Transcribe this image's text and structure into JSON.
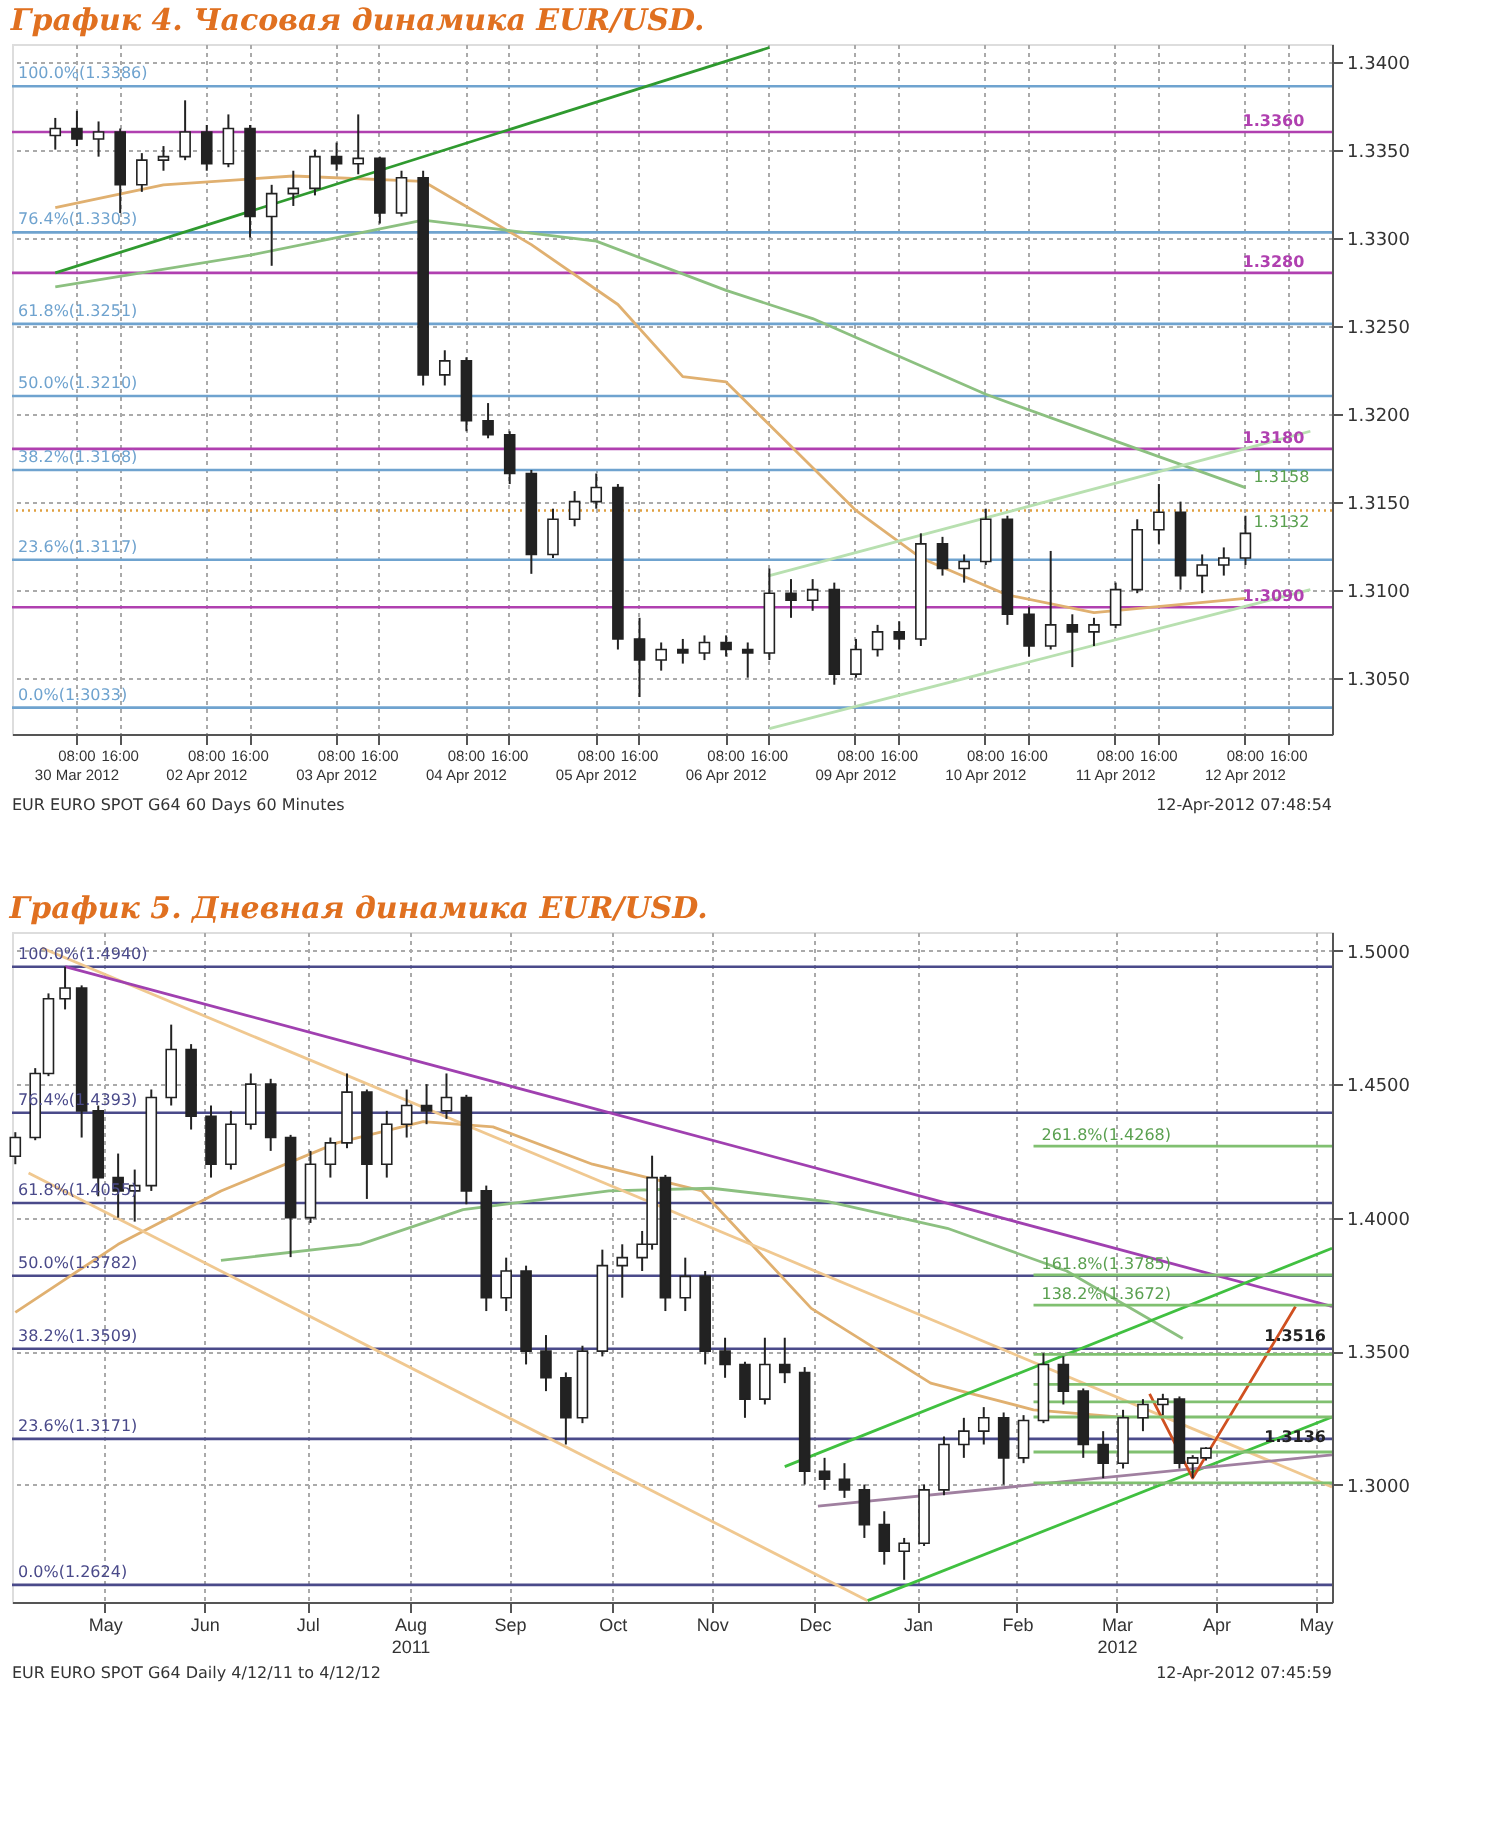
{
  "chart_data": [
    {
      "type": "candlestick",
      "title": "График 4.   Часовая динамика EUR/USD.",
      "grid": true,
      "ylim": [
        1.3018,
        1.341
      ],
      "yticks": [
        {
          "value": 1.305,
          "label": "1.3050"
        },
        {
          "value": 1.31,
          "label": "1.3100"
        },
        {
          "value": 1.315,
          "label": "1.3150"
        },
        {
          "value": 1.32,
          "label": "1.3200"
        },
        {
          "value": 1.325,
          "label": "1.3250"
        },
        {
          "value": 1.33,
          "label": "1.3300"
        },
        {
          "value": 1.335,
          "label": "1.3350"
        },
        {
          "value": 1.34,
          "label": "1.3400"
        }
      ],
      "categories": [
        null,
        null,
        "08:00\n30 Mar 2012",
        null,
        "16:00",
        null,
        null,
        null,
        "08:00\n02 Apr 2012",
        null,
        "16:00",
        null,
        null,
        null,
        "08:00\n03 Apr 2012",
        null,
        "16:00",
        null,
        null,
        null,
        "08:00\n04 Apr 2012",
        null,
        "16:00",
        null,
        null,
        null,
        "08:00\n05 Apr 2012",
        null,
        "16:00",
        null,
        null,
        null,
        "08:00\n06 Apr 2012",
        null,
        "16:00",
        null,
        null,
        null,
        "08:00\n09 Apr 2012",
        null,
        "16:00",
        null,
        null,
        null,
        "08:00\n10 Apr 2012",
        null,
        "16:00",
        null,
        null,
        null,
        "08:00\n11 Apr 2012",
        null,
        "16:00",
        null,
        null,
        null,
        "08:00\n12 Apr 2012",
        null,
        "16:00",
        null
      ],
      "ohlc": [
        null,
        [
          1.3358,
          1.3368,
          1.335,
          1.3362
        ],
        [
          1.3362,
          1.3372,
          1.3352,
          1.3356
        ],
        [
          1.3356,
          1.3366,
          1.3346,
          1.336
        ],
        [
          1.336,
          1.3362,
          1.3314,
          1.333
        ],
        [
          1.333,
          1.3348,
          1.3326,
          1.3344
        ],
        [
          1.3344,
          1.3352,
          1.3338,
          1.3346
        ],
        [
          1.3346,
          1.3378,
          1.3344,
          1.336
        ],
        [
          1.336,
          1.3364,
          1.3338,
          1.3342
        ],
        [
          1.3342,
          1.337,
          1.334,
          1.3362
        ],
        [
          1.3362,
          1.3364,
          1.33,
          1.3312
        ],
        [
          1.3312,
          1.333,
          1.3284,
          1.3325
        ],
        [
          1.3325,
          1.3338,
          1.3318,
          1.3328
        ],
        [
          1.3328,
          1.335,
          1.3324,
          1.3346
        ],
        [
          1.3346,
          1.3354,
          1.3338,
          1.3342
        ],
        [
          1.3342,
          1.337,
          1.3336,
          1.3345
        ],
        [
          1.3345,
          1.3346,
          1.3308,
          1.3314
        ],
        [
          1.3314,
          1.3338,
          1.3312,
          1.3334
        ],
        [
          1.3334,
          1.3338,
          1.3216,
          1.3222
        ],
        [
          1.3222,
          1.3236,
          1.3216,
          1.323
        ],
        [
          1.323,
          1.3232,
          1.319,
          1.3196
        ],
        [
          1.3196,
          1.3206,
          1.3186,
          1.3188
        ],
        [
          1.3188,
          1.319,
          1.316,
          1.3166
        ],
        [
          1.3166,
          1.3168,
          1.3109,
          1.312
        ],
        [
          1.312,
          1.3146,
          1.3118,
          1.314
        ],
        [
          1.314,
          1.3156,
          1.3136,
          1.315
        ],
        [
          1.315,
          1.3166,
          1.3146,
          1.3158
        ],
        [
          1.3158,
          1.316,
          1.3066,
          1.3072
        ],
        [
          1.3072,
          1.3084,
          1.3039,
          1.306
        ],
        [
          1.306,
          1.307,
          1.3054,
          1.3066
        ],
        [
          1.3066,
          1.3072,
          1.3058,
          1.3064
        ],
        [
          1.3064,
          1.3074,
          1.306,
          1.307
        ],
        [
          1.307,
          1.3074,
          1.3062,
          1.3066
        ],
        [
          1.3066,
          1.307,
          1.305,
          1.3064
        ],
        [
          1.3064,
          1.3112,
          1.306,
          1.3098
        ],
        [
          1.3098,
          1.3106,
          1.3084,
          1.3094
        ],
        [
          1.3094,
          1.3106,
          1.3088,
          1.31
        ],
        [
          1.31,
          1.3104,
          1.3046,
          1.3052
        ],
        [
          1.3052,
          1.3072,
          1.305,
          1.3066
        ],
        [
          1.3066,
          1.308,
          1.3062,
          1.3076
        ],
        [
          1.3076,
          1.3082,
          1.3066,
          1.3072
        ],
        [
          1.3072,
          1.3132,
          1.3068,
          1.3126
        ],
        [
          1.3126,
          1.313,
          1.3108,
          1.3112
        ],
        [
          1.3112,
          1.312,
          1.3104,
          1.3116
        ],
        [
          1.3116,
          1.3146,
          1.3114,
          1.314
        ],
        [
          1.314,
          1.3142,
          1.308,
          1.3086
        ],
        [
          1.3086,
          1.309,
          1.3062,
          1.3068
        ],
        [
          1.3068,
          1.3122,
          1.3066,
          1.308
        ],
        [
          1.308,
          1.3086,
          1.3056,
          1.3076
        ],
        [
          1.3076,
          1.3084,
          1.3068,
          1.308
        ],
        [
          1.308,
          1.3104,
          1.3078,
          1.31
        ],
        [
          1.31,
          1.314,
          1.3098,
          1.3134
        ],
        [
          1.3134,
          1.316,
          1.3126,
          1.3144
        ],
        [
          1.3144,
          1.315,
          1.31,
          1.3108
        ],
        [
          1.3108,
          1.312,
          1.3098,
          1.3114
        ],
        [
          1.3114,
          1.3124,
          1.3108,
          1.3118
        ],
        [
          1.3118,
          1.3142,
          1.3114,
          1.3132
        ],
        null,
        null,
        null
      ],
      "series": [
        {
          "type": "line",
          "color": "#e0b070",
          "values": [
            null,
            1.3317,
            null,
            null,
            null,
            null,
            1.333,
            null,
            null,
            null,
            null,
            null,
            1.3335,
            null,
            null,
            null,
            null,
            null,
            1.3332,
            null,
            null,
            null,
            null,
            1.3296,
            null,
            null,
            null,
            1.3262,
            null,
            null,
            1.3221,
            null,
            1.3218,
            null,
            null,
            null,
            null,
            null,
            1.3145,
            null,
            null,
            1.3118,
            null,
            null,
            null,
            1.3097,
            null,
            null,
            null,
            1.3087,
            null,
            null,
            null,
            null,
            null,
            null,
            1.3095,
            null,
            null,
            null
          ]
        },
        {
          "type": "line",
          "color": "#8cc080",
          "values": [
            null,
            1.3272,
            null,
            null,
            null,
            null,
            null,
            null,
            null,
            null,
            1.329,
            null,
            null,
            null,
            null,
            null,
            null,
            null,
            1.331,
            null,
            null,
            null,
            null,
            null,
            null,
            null,
            1.3298,
            null,
            null,
            null,
            null,
            null,
            1.327,
            null,
            null,
            null,
            1.3254,
            null,
            null,
            null,
            null,
            null,
            null,
            null,
            1.3211,
            null,
            null,
            null,
            null,
            null,
            null,
            1.318,
            null,
            null,
            null,
            null,
            1.3158,
            null,
            null,
            null
          ]
        },
        {
          "type": "line",
          "color": "#2f9a2f",
          "values": [
            null,
            1.328,
            null,
            null,
            null,
            null,
            null,
            null,
            null,
            null,
            null,
            null,
            null,
            null,
            null,
            null,
            null,
            null,
            null,
            null,
            null,
            null,
            null,
            null,
            null,
            null,
            null,
            null,
            null,
            null,
            null,
            null,
            null,
            null,
            1.3408,
            null,
            null,
            null,
            null,
            null,
            null,
            null,
            null,
            null,
            null,
            null,
            null,
            null,
            null,
            null,
            null,
            null,
            null,
            null,
            null,
            null,
            null,
            null,
            null,
            null
          ]
        },
        {
          "type": "line",
          "color": "#b8e0b0",
          "values": [
            null,
            null,
            null,
            null,
            null,
            null,
            null,
            null,
            null,
            null,
            null,
            null,
            null,
            null,
            null,
            null,
            null,
            null,
            null,
            null,
            null,
            null,
            null,
            null,
            null,
            null,
            null,
            null,
            null,
            null,
            null,
            null,
            null,
            null,
            1.3021,
            null,
            null,
            null,
            null,
            null,
            null,
            null,
            null,
            null,
            null,
            null,
            null,
            null,
            null,
            null,
            null,
            null,
            null,
            null,
            null,
            null,
            null,
            null,
            null,
            1.31
          ]
        },
        {
          "type": "line",
          "color": "#b8e0b0",
          "values": [
            null,
            null,
            null,
            null,
            null,
            null,
            null,
            null,
            null,
            null,
            null,
            null,
            null,
            null,
            null,
            null,
            null,
            null,
            null,
            null,
            null,
            null,
            null,
            null,
            null,
            null,
            null,
            null,
            null,
            null,
            null,
            null,
            null,
            null,
            1.3108,
            null,
            null,
            null,
            null,
            null,
            null,
            null,
            null,
            null,
            null,
            null,
            null,
            null,
            null,
            null,
            null,
            null,
            null,
            null,
            null,
            null,
            null,
            null,
            null,
            1.319
          ]
        }
      ],
      "ref_lines": [
        {
          "axis": "y",
          "value": 1.3386,
          "label": "100.0%(1.3386)",
          "color": "#6fa3cf"
        },
        {
          "axis": "y",
          "value": 1.3303,
          "label": "76.4%(1.3303)",
          "color": "#6fa3cf"
        },
        {
          "axis": "y",
          "value": 1.3251,
          "label": "61.8%(1.3251)",
          "color": "#6fa3cf"
        },
        {
          "axis": "y",
          "value": 1.321,
          "label": "50.0%(1.3210)",
          "color": "#6fa3cf"
        },
        {
          "axis": "y",
          "value": 1.3168,
          "label": "38.2%(1.3168)",
          "color": "#6fa3cf"
        },
        {
          "axis": "y",
          "value": 1.3117,
          "label": "23.6%(1.3117)",
          "color": "#6fa3cf"
        },
        {
          "axis": "y",
          "value": 1.3033,
          "label": "0.0%(1.3033)",
          "color": "#6fa3cf"
        },
        {
          "axis": "y",
          "value": 1.336,
          "color": "#b040b0"
        },
        {
          "axis": "y",
          "value": 1.328,
          "color": "#b040b0"
        },
        {
          "axis": "y",
          "value": 1.318,
          "color": "#b040b0"
        },
        {
          "axis": "y",
          "value": 1.309,
          "color": "#b040b0"
        },
        {
          "axis": "y",
          "value": 1.3145,
          "color": "#e0a040",
          "line_style": "dotted"
        }
      ],
      "annotations": [
        "EUR  EURO SPOT     G64    60 Days  60 Minutes",
        "12-Apr-2012 07:48:54",
        {
          "text": "1.3360",
          "y": 1.336
        },
        {
          "text": "1.3280",
          "y": 1.328
        },
        {
          "text": "1.3180",
          "y": 1.318
        },
        {
          "text": "1.3158",
          "x": "08:00\n12 Apr 2012",
          "y": 1.3158
        },
        {
          "text": "1.3132",
          "x": "08:00\n12 Apr 2012",
          "y": 1.3132
        },
        {
          "text": "1.3090",
          "y": 1.309
        }
      ]
    },
    {
      "type": "candlestick",
      "title": "График 5.   Дневная динамика EUR/USD.",
      "grid": true,
      "xlim": [
        "2011-04-18",
        "2012-05-20"
      ],
      "ylim": [
        1.256,
        1.507
      ],
      "xticks": [
        {
          "value": "2011-05-16",
          "label": "May"
        },
        {
          "value": "2011-06-15",
          "label": "Jun"
        },
        {
          "value": "2011-07-16",
          "label": "Jul"
        },
        {
          "value": "2011-08-16",
          "label": "Aug\n2011"
        },
        {
          "value": "2011-09-15",
          "label": "Sep"
        },
        {
          "value": "2011-10-16",
          "label": "Oct"
        },
        {
          "value": "2011-11-15",
          "label": "Nov"
        },
        {
          "value": "2011-12-16",
          "label": "Dec"
        },
        {
          "value": "2012-01-16",
          "label": "Jan"
        },
        {
          "value": "2012-02-15",
          "label": "Feb"
        },
        {
          "value": "2012-03-16",
          "label": "Mar\n2012"
        },
        {
          "value": "2012-04-15",
          "label": "Apr"
        },
        {
          "value": "2012-05-15",
          "label": "May"
        }
      ],
      "yticks": [
        {
          "value": 1.3,
          "label": "1.3000"
        },
        {
          "value": 1.35,
          "label": "1.3500"
        },
        {
          "value": 1.4,
          "label": "1.4000"
        },
        {
          "value": 1.45,
          "label": "1.4500"
        },
        {
          "value": 1.5,
          "label": "1.5000"
        }
      ],
      "x": [
        "2011-04-19",
        "2011-04-25",
        "2011-04-29",
        "2011-05-04",
        "2011-05-09",
        "2011-05-14",
        "2011-05-20",
        "2011-05-25",
        "2011-05-30",
        "2011-06-05",
        "2011-06-11",
        "2011-06-17",
        "2011-06-23",
        "2011-06-29",
        "2011-07-05",
        "2011-07-11",
        "2011-07-17",
        "2011-07-23",
        "2011-07-28",
        "2011-08-03",
        "2011-08-09",
        "2011-08-15",
        "2011-08-21",
        "2011-08-27",
        "2011-09-02",
        "2011-09-08",
        "2011-09-14",
        "2011-09-20",
        "2011-09-26",
        "2011-10-02",
        "2011-10-07",
        "2011-10-13",
        "2011-10-19",
        "2011-10-25",
        "2011-10-28",
        "2011-11-01",
        "2011-11-07",
        "2011-11-13",
        "2011-11-19",
        "2011-11-25",
        "2011-12-01",
        "2011-12-07",
        "2011-12-13",
        "2011-12-19",
        "2011-12-25",
        "2011-12-31",
        "2012-01-06",
        "2012-01-12",
        "2012-01-18",
        "2012-01-24",
        "2012-01-30",
        "2012-02-05",
        "2012-02-11",
        "2012-02-17",
        "2012-02-23",
        "2012-02-29",
        "2012-03-06",
        "2012-03-12",
        "2012-03-18",
        "2012-03-24",
        "2012-03-30",
        "2012-04-04",
        "2012-04-08",
        "2012-04-12"
      ],
      "ohlc": [
        [
          1.423,
          1.432,
          1.42,
          1.43
        ],
        [
          1.43,
          1.456,
          1.429,
          1.454
        ],
        [
          1.454,
          1.484,
          1.453,
          1.482
        ],
        [
          1.482,
          1.494,
          1.478,
          1.486
        ],
        [
          1.486,
          1.487,
          1.43,
          1.44
        ],
        [
          1.44,
          1.442,
          1.408,
          1.415
        ],
        [
          1.415,
          1.424,
          1.4,
          1.41
        ],
        [
          1.41,
          1.418,
          1.3985,
          1.412
        ],
        [
          1.412,
          1.448,
          1.41,
          1.445
        ],
        [
          1.445,
          1.4723,
          1.442,
          1.463
        ],
        [
          1.463,
          1.465,
          1.433,
          1.438
        ],
        [
          1.438,
          1.442,
          1.415,
          1.42
        ],
        [
          1.42,
          1.44,
          1.418,
          1.435
        ],
        [
          1.435,
          1.454,
          1.433,
          1.45
        ],
        [
          1.45,
          1.452,
          1.425,
          1.43
        ],
        [
          1.43,
          1.431,
          1.3852,
          1.4
        ],
        [
          1.4,
          1.425,
          1.398,
          1.42
        ],
        [
          1.42,
          1.43,
          1.415,
          1.428
        ],
        [
          1.428,
          1.454,
          1.426,
          1.447
        ],
        [
          1.447,
          1.448,
          1.407,
          1.42
        ],
        [
          1.42,
          1.44,
          1.415,
          1.435
        ],
        [
          1.435,
          1.448,
          1.43,
          1.442
        ],
        [
          1.442,
          1.45,
          1.435,
          1.44
        ],
        [
          1.44,
          1.454,
          1.437,
          1.445
        ],
        [
          1.445,
          1.446,
          1.405,
          1.41
        ],
        [
          1.41,
          1.412,
          1.365,
          1.37
        ],
        [
          1.37,
          1.385,
          1.365,
          1.38
        ],
        [
          1.38,
          1.382,
          1.345,
          1.35
        ],
        [
          1.35,
          1.356,
          1.335,
          1.34
        ],
        [
          1.34,
          1.342,
          1.315,
          1.325
        ],
        [
          1.325,
          1.352,
          1.323,
          1.35
        ],
        [
          1.35,
          1.388,
          1.348,
          1.382
        ],
        [
          1.382,
          1.39,
          1.37,
          1.385
        ],
        [
          1.385,
          1.395,
          1.38,
          1.39
        ],
        [
          1.39,
          1.4232,
          1.388,
          1.415
        ],
        [
          1.415,
          1.416,
          1.365,
          1.37
        ],
        [
          1.37,
          1.385,
          1.365,
          1.378
        ],
        [
          1.378,
          1.38,
          1.345,
          1.35
        ],
        [
          1.35,
          1.355,
          1.34,
          1.345
        ],
        [
          1.345,
          1.346,
          1.325,
          1.332
        ],
        [
          1.332,
          1.355,
          1.33,
          1.345
        ],
        [
          1.345,
          1.355,
          1.338,
          1.342
        ],
        [
          1.342,
          1.344,
          1.3,
          1.305
        ],
        [
          1.305,
          1.31,
          1.298,
          1.302
        ],
        [
          1.302,
          1.308,
          1.295,
          1.298
        ],
        [
          1.298,
          1.3,
          1.28,
          1.285
        ],
        [
          1.285,
          1.29,
          1.27,
          1.275
        ],
        [
          1.275,
          1.28,
          1.2643,
          1.278
        ],
        [
          1.278,
          1.3,
          1.277,
          1.298
        ],
        [
          1.298,
          1.318,
          1.296,
          1.315
        ],
        [
          1.315,
          1.325,
          1.31,
          1.32
        ],
        [
          1.32,
          1.329,
          1.315,
          1.325
        ],
        [
          1.325,
          1.327,
          1.3,
          1.31
        ],
        [
          1.31,
          1.326,
          1.308,
          1.324
        ],
        [
          1.324,
          1.3492,
          1.323,
          1.345
        ],
        [
          1.345,
          1.348,
          1.33,
          1.335
        ],
        [
          1.335,
          1.336,
          1.31,
          1.315
        ],
        [
          1.315,
          1.32,
          1.3024,
          1.308
        ],
        [
          1.308,
          1.328,
          1.306,
          1.325
        ],
        [
          1.325,
          1.332,
          1.32,
          1.33
        ],
        [
          1.33,
          1.334,
          1.326,
          1.332
        ],
        [
          1.332,
          1.333,
          1.306,
          1.308
        ],
        [
          1.308,
          1.311,
          1.3024,
          1.31
        ],
        [
          1.31,
          1.314,
          1.309,
          1.3136
        ]
      ],
      "series": [
        {
          "type": "line",
          "color": "#e0b070",
          "x": [
            "2011-04-19",
            "2011-05-20",
            "2011-06-20",
            "2011-07-25",
            "2011-08-20",
            "2011-09-10",
            "2011-10-10",
            "2011-11-12",
            "2011-12-15",
            "2012-01-20",
            "2012-02-20",
            "2012-03-20"
          ],
          "values": [
            1.3645,
            1.39,
            1.41,
            1.428,
            1.436,
            1.434,
            1.42,
            1.41,
            1.366,
            1.338,
            1.328,
            1.325
          ]
        },
        {
          "type": "line",
          "color": "#8cc080",
          "x": [
            "2011-06-20",
            "2011-08-01",
            "2011-09-01",
            "2011-10-15",
            "2011-11-15",
            "2011-12-20",
            "2012-01-25",
            "2012-03-01",
            "2012-04-05"
          ],
          "values": [
            1.384,
            1.39,
            1.403,
            1.41,
            1.411,
            1.406,
            1.396,
            1.38,
            1.3547
          ]
        },
        {
          "type": "line",
          "color": "#f0c890",
          "x": [
            "2011-04-27",
            "2012-05-20"
          ],
          "values": [
            1.501,
            1.2991
          ]
        },
        {
          "type": "line",
          "color": "#f0c890",
          "x": [
            "2011-04-23",
            "2012-01-01"
          ],
          "values": [
            1.4167,
            1.2565
          ]
        },
        {
          "type": "line",
          "color": "#a040b0",
          "x": [
            "2011-05-04",
            "2012-05-20"
          ],
          "values": [
            1.494,
            1.3667
          ]
        },
        {
          "type": "line",
          "color": "#40c040",
          "x": [
            "2012-01-01",
            "2012-05-20"
          ],
          "values": [
            1.2565,
            1.3253
          ]
        },
        {
          "type": "line",
          "color": "#40c040",
          "x": [
            "2011-12-07",
            "2012-05-20"
          ],
          "values": [
            1.3067,
            1.3885
          ]
        },
        {
          "type": "line",
          "color": "#a080a0",
          "x": [
            "2011-12-17",
            "2012-05-20"
          ],
          "values": [
            1.2919,
            1.3111
          ]
        },
        {
          "type": "line",
          "color": "#d05020",
          "x": [
            "2012-03-26",
            "2012-04-08",
            "2012-05-09"
          ],
          "values": [
            1.334,
            1.3024,
            1.3667
          ]
        },
        {
          "type": "line",
          "color": "#80c070",
          "x": [
            "2012-02-20",
            "2012-05-20"
          ],
          "values": [
            1.4268,
            1.4268
          ]
        },
        {
          "type": "line",
          "color": "#80c070",
          "x": [
            "2012-02-20",
            "2012-05-20"
          ],
          "values": [
            1.3785,
            1.3785
          ]
        },
        {
          "type": "line",
          "color": "#80c070",
          "x": [
            "2012-02-20",
            "2012-05-20"
          ],
          "values": [
            1.3672,
            1.3672
          ]
        },
        {
          "type": "line",
          "color": "#80c070",
          "x": [
            "2012-02-20",
            "2012-05-20"
          ],
          "values": [
            1.3488,
            1.3488
          ]
        },
        {
          "type": "line",
          "color": "#80c070",
          "x": [
            "2012-02-20",
            "2012-05-20"
          ],
          "values": [
            1.3375,
            1.3375
          ]
        },
        {
          "type": "line",
          "color": "#80c070",
          "x": [
            "2012-02-20",
            "2012-05-20"
          ],
          "values": [
            1.331,
            1.331
          ]
        },
        {
          "type": "line",
          "color": "#80c070",
          "x": [
            "2012-02-20",
            "2012-05-20"
          ],
          "values": [
            1.3253,
            1.3253
          ]
        },
        {
          "type": "line",
          "color": "#80c070",
          "x": [
            "2012-02-20",
            "2012-05-20"
          ],
          "values": [
            1.3122,
            1.3122
          ]
        },
        {
          "type": "line",
          "color": "#80c070",
          "x": [
            "2012-02-20",
            "2012-05-20"
          ],
          "values": [
            1.3006,
            1.3006
          ]
        }
      ],
      "ref_lines": [
        {
          "axis": "y",
          "value": 1.494,
          "label": "100.0%(1.4940)",
          "color": "#4a4a8a"
        },
        {
          "axis": "y",
          "value": 1.4393,
          "label": "76.4%(1.4393)",
          "color": "#4a4a8a"
        },
        {
          "axis": "y",
          "value": 1.4055,
          "label": "61.8%(1.4055)",
          "color": "#4a4a8a"
        },
        {
          "axis": "y",
          "value": 1.3782,
          "label": "50.0%(1.3782)",
          "color": "#4a4a8a"
        },
        {
          "axis": "y",
          "value": 1.3509,
          "label": "38.2%(1.3509)",
          "color": "#4a4a8a"
        },
        {
          "axis": "y",
          "value": 1.3171,
          "label": "23.6%(1.3171)",
          "color": "#4a4a8a"
        },
        {
          "axis": "y",
          "value": 1.2624,
          "label": "0.0%(1.2624)",
          "color": "#4a4a8a"
        }
      ],
      "annotations": [
        "EUR  EURO SPOT     G64    Daily  4/12/11 to 4/12/12",
        "12-Apr-2012 07:45:59",
        {
          "text": "261.8%(1.4268)",
          "x": "2012-02-20",
          "y": 1.4268
        },
        {
          "text": "161.8%(1.3785)",
          "x": "2012-02-20",
          "y": 1.3785
        },
        {
          "text": "138.2%(1.3672)",
          "x": "2012-02-20",
          "y": 1.3672
        },
        {
          "text": "1.3516",
          "x": "2012-05-20",
          "y": 1.3516
        },
        {
          "text": "1.3136",
          "x": "2012-05-20",
          "y": 1.3136
        }
      ]
    }
  ]
}
